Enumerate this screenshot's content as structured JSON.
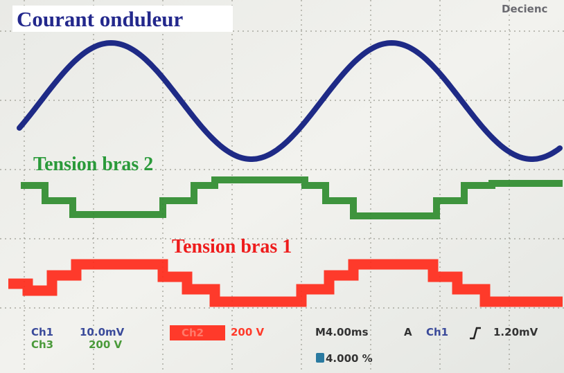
{
  "labels": {
    "current": "Courant onduleur",
    "arm2": "Tension bras 2",
    "arm1": "Tension bras 1"
  },
  "header": {
    "trigger": "Decienc"
  },
  "readout": {
    "ch1": "Ch1",
    "ch1_scale": "10.0mV",
    "ch2": "Ch2",
    "ch2_scale": "200 V",
    "time": "M4.00ms",
    "mode": "A",
    "trig_ch": "Ch1",
    "trig_level": "1.20mV",
    "ch3": "Ch3",
    "ch3_scale": "200 V",
    "meas": "4.000 %"
  }
}
